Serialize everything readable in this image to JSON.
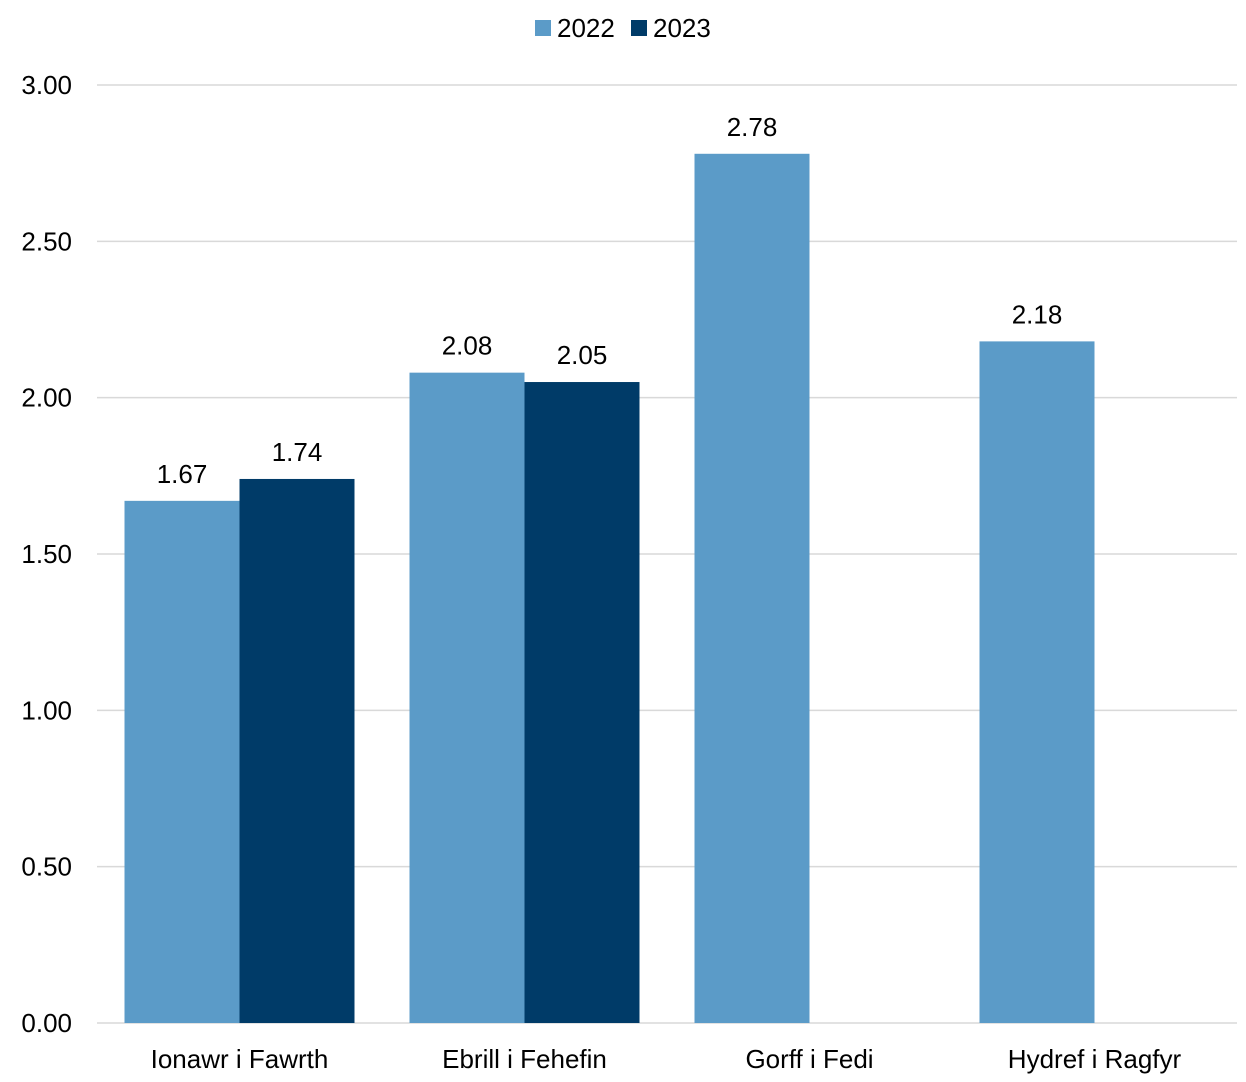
{
  "chart_data": {
    "type": "bar",
    "title": "",
    "xlabel": "",
    "ylabel": "",
    "categories": [
      "Ionawr i Fawrth",
      "Ebrill i Fehefin",
      "Gorff i Fedi",
      "Hydref i Ragfyr"
    ],
    "series": [
      {
        "name": "2022",
        "values": [
          1.67,
          2.08,
          2.78,
          2.18
        ],
        "labels": [
          "1.67",
          "2.08",
          "2.78",
          "2.18"
        ],
        "color": "#5b9bc8"
      },
      {
        "name": "2023",
        "values": [
          1.74,
          2.05,
          null,
          null
        ],
        "labels": [
          "1.74",
          "2.05",
          "",
          ""
        ],
        "color": "#003b68"
      }
    ],
    "ylim": [
      0,
      3
    ],
    "yticks": [
      "0.00",
      "0.50",
      "1.00",
      "1.50",
      "2.00",
      "2.50",
      "3.00"
    ],
    "grid": true,
    "legend_position": "top-center",
    "gridline_color": "#d9d9d9"
  }
}
